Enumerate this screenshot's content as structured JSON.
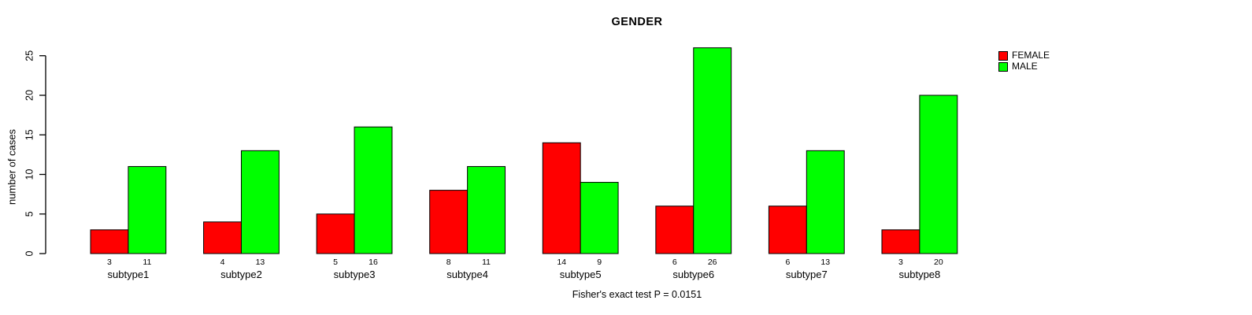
{
  "chart_data": {
    "type": "bar",
    "title": "GENDER",
    "ylabel": "number of cases",
    "xlabel": "",
    "categories": [
      "subtype1",
      "subtype2",
      "subtype3",
      "subtype4",
      "subtype5",
      "subtype6",
      "subtype7",
      "subtype8"
    ],
    "series": [
      {
        "name": "FEMALE",
        "color": "#FF0000",
        "values": [
          3,
          4,
          5,
          8,
          14,
          6,
          6,
          3
        ]
      },
      {
        "name": "MALE",
        "color": "#00FF00",
        "values": [
          11,
          13,
          16,
          11,
          9,
          26,
          13,
          20
        ]
      }
    ],
    "yticks": [
      0,
      5,
      10,
      15,
      20,
      25
    ],
    "ylim": [
      0,
      26
    ],
    "grid": false,
    "bar_value_labels_shown": true,
    "legend_position": "top-right",
    "annotation": "Fisher's exact test P = 0.0151"
  },
  "colors": {
    "female": "#FF0000",
    "male": "#00FF00",
    "axis": "#000000",
    "background": "#FFFFFF"
  }
}
